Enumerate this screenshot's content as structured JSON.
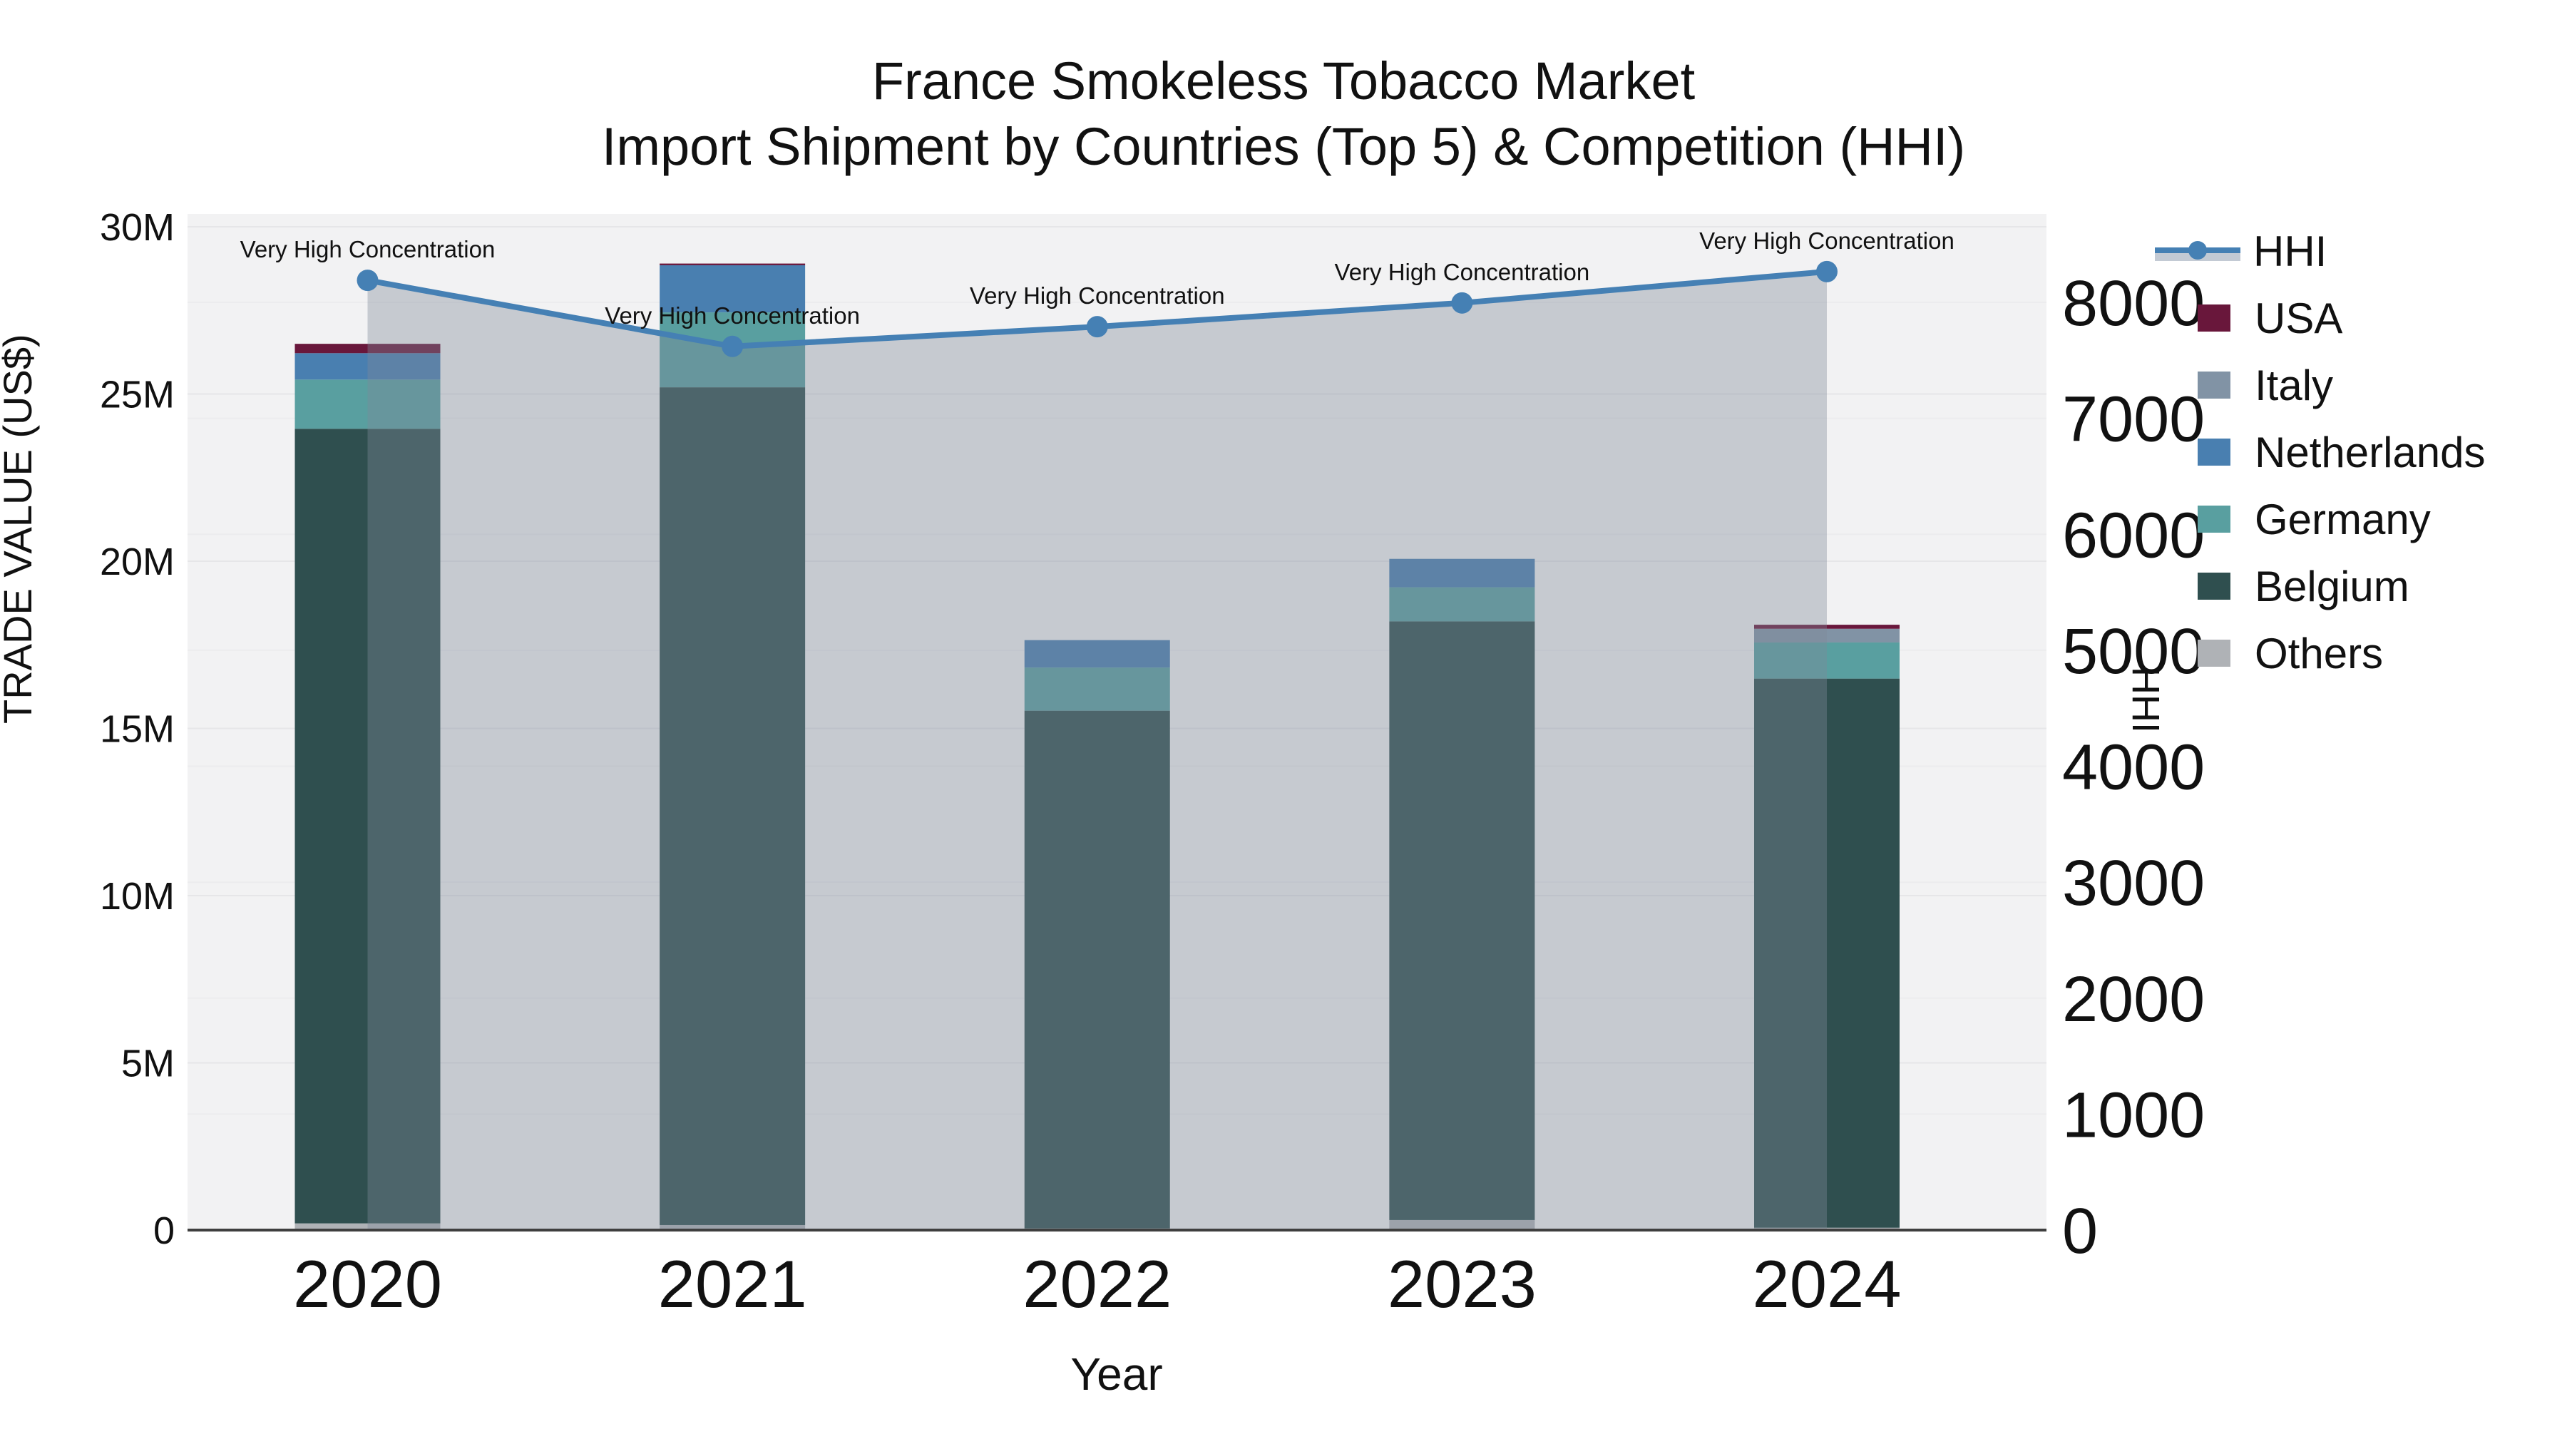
{
  "title": {
    "line1": "France Smokeless Tobacco Market",
    "line2": "Import Shipment by Countries (Top 5) & Competition (HHI)"
  },
  "chart_data": {
    "type": "bar+line",
    "categories": [
      "2020",
      "2021",
      "2022",
      "2023",
      "2024"
    ],
    "values_unit": "US$ millions (bars), HHI index points (line)",
    "bar_stack_order_bottom_to_top": [
      "Others",
      "Belgium",
      "Germany",
      "Netherlands",
      "Italy",
      "USA"
    ],
    "bar_series": [
      {
        "name": "Others",
        "color": "#AFB2B6",
        "values": [
          0.2,
          0.15,
          0.05,
          0.3,
          0.07
        ]
      },
      {
        "name": "Belgium",
        "color": "#2F4F4F",
        "values": [
          23.76,
          25.05,
          15.48,
          17.9,
          16.42
        ]
      },
      {
        "name": "Germany",
        "color": "#599FA0",
        "values": [
          1.47,
          2.24,
          1.29,
          1.02,
          1.08
        ]
      },
      {
        "name": "Netherlands",
        "color": "#497FB0",
        "values": [
          0.79,
          1.41,
          0.82,
          0.85,
          0.0
        ]
      },
      {
        "name": "Italy",
        "color": "#8193A5",
        "values": [
          0.0,
          0.0,
          0.0,
          0.0,
          0.41
        ]
      },
      {
        "name": "USA",
        "color": "#69173B",
        "values": [
          0.28,
          0.05,
          0.0,
          0.0,
          0.12
        ]
      }
    ],
    "bar_totals": [
      26.5,
      28.9,
      17.64,
      20.07,
      18.1
    ],
    "line_series": {
      "name": "HHI",
      "color": "#4580B4",
      "fill_color": "rgba(125,137,152,0.38)",
      "values": [
        8190,
        7620,
        7790,
        7995,
        8265
      ]
    },
    "annotations": [
      {
        "text": "Very High Concentration",
        "category": "2020"
      },
      {
        "text": "Very High Concentration",
        "category": "2021"
      },
      {
        "text": "Very High Concentration",
        "category": "2022"
      },
      {
        "text": "Very High Concentration",
        "category": "2023"
      },
      {
        "text": "Very High Concentration",
        "category": "2024"
      }
    ],
    "left_axis": {
      "label": "TRADE VALUE (US$)",
      "tick_labels": [
        "0",
        "5M",
        "10M",
        "15M",
        "20M",
        "25M",
        "30M"
      ],
      "tick_values_M": [
        0,
        5,
        10,
        15,
        20,
        25,
        30
      ],
      "range_M": [
        0,
        30.4
      ],
      "grid": true
    },
    "right_axis": {
      "label": "HHI",
      "tick_labels": [
        "0",
        "1000",
        "2000",
        "3000",
        "4000",
        "5000",
        "6000",
        "7000",
        "8000"
      ],
      "tick_values": [
        0,
        1000,
        2000,
        3000,
        4000,
        5000,
        6000,
        7000,
        8000
      ],
      "range": [
        0,
        8750
      ],
      "grid": true
    },
    "x_axis": {
      "label": "Year"
    },
    "legend_position": "right"
  },
  "legend": {
    "items": [
      {
        "label": "HHI",
        "type": "line",
        "color": "#4580B4"
      },
      {
        "label": "USA",
        "type": "swatch",
        "color": "#69173B"
      },
      {
        "label": "Italy",
        "type": "swatch",
        "color": "#8193A5"
      },
      {
        "label": "Netherlands",
        "type": "swatch",
        "color": "#497FB0"
      },
      {
        "label": "Germany",
        "type": "swatch",
        "color": "#599FA0"
      },
      {
        "label": "Belgium",
        "type": "swatch",
        "color": "#2F4F4F"
      },
      {
        "label": "Others",
        "type": "swatch",
        "color": "#AFB2B6"
      }
    ]
  },
  "style": {
    "plot_bg": "#F2F2F3",
    "grid_color_left": "#E6E6E8",
    "grid_color_right": "#ECECEE",
    "baseline_color": "#3F3F3F",
    "text_color": "#111111"
  }
}
